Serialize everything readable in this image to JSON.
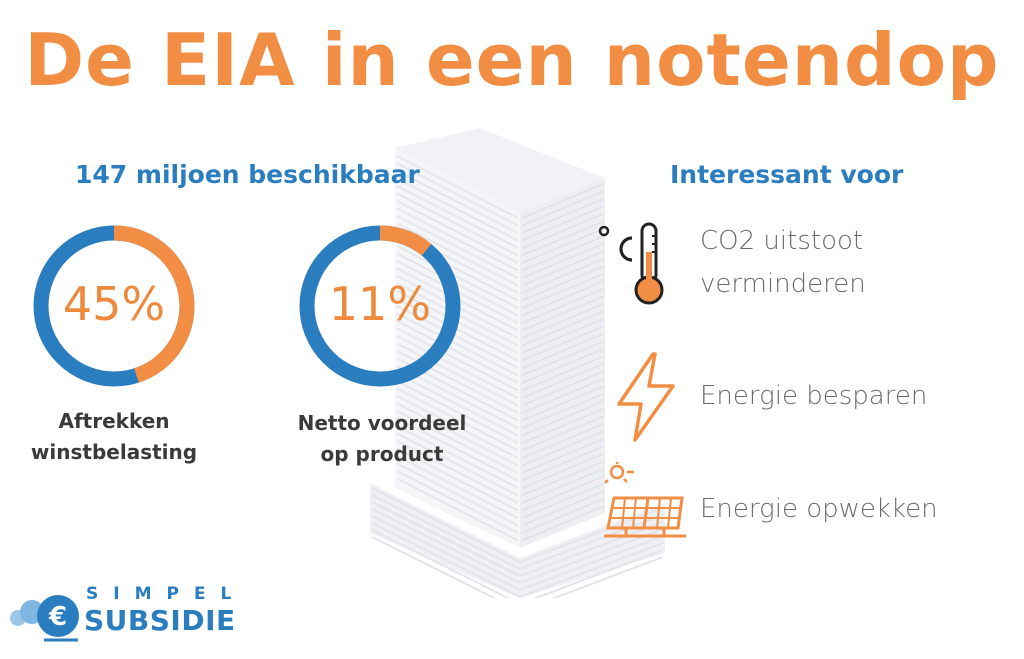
{
  "title": "De EIA in een notendop",
  "left_section": {
    "heading": "147 miljoen beschikbaar",
    "stats": [
      {
        "value_text": "45%",
        "fraction": 0.45,
        "label_line1": "Aftrekken",
        "label_line2": "winstbelasting"
      },
      {
        "value_text": "11%",
        "fraction": 0.11,
        "label_line1": "Netto voordeel",
        "label_line2": "op product"
      }
    ]
  },
  "right_section": {
    "heading": "Interessant voor",
    "items": [
      {
        "icon": "thermometer-icon",
        "line1": "CO2 uitstoot",
        "line2": "verminderen"
      },
      {
        "icon": "lightning-icon",
        "line1": "Energie besparen"
      },
      {
        "icon": "solar-panel-icon",
        "line1": "Energie opwekken"
      }
    ]
  },
  "logo": {
    "top": "SIMPEL",
    "bottom": "SUBSIDIE"
  },
  "colors": {
    "orange": "#f28d44",
    "blue": "#2a7ebf",
    "text_gray": "#6b6b6b"
  }
}
